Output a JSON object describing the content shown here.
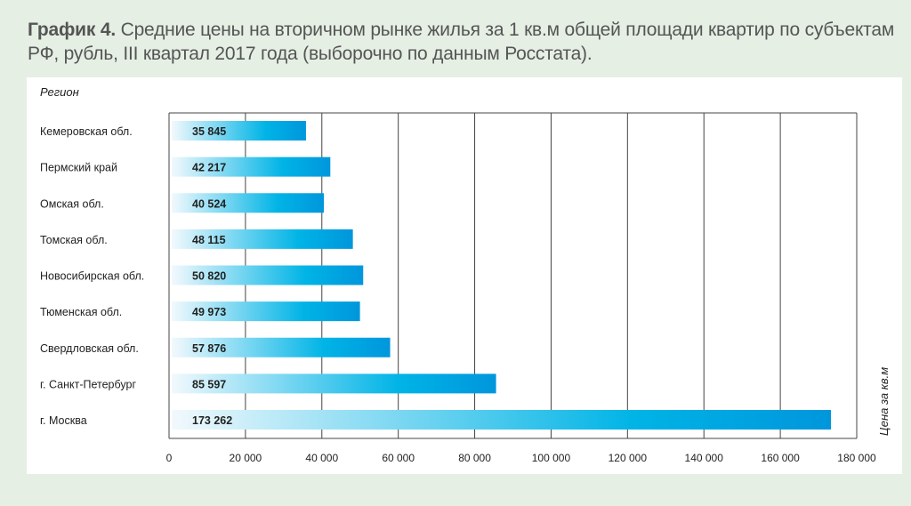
{
  "title": {
    "prefix": "График 4.",
    "text": " Средние цены на вторичном рынке жилья за 1 кв.м общей площади квартир по субъектам РФ, рубль, III квартал 2017 года (выборочно по данным Росстата)."
  },
  "chart_data": {
    "type": "bar",
    "orientation": "horizontal",
    "ylabel": "Регион",
    "xlabel": "Цена за кв.м",
    "xlim": [
      0,
      180000
    ],
    "xticks": [
      "0",
      "20 000",
      "40 000",
      "60 000",
      "80 000",
      "100 000",
      "120 000",
      "140 000",
      "160 000",
      "180 000"
    ],
    "grid": "vertical",
    "categories": [
      "Кемеровская обл.",
      "Пермский край",
      "Омская обл.",
      "Томская обл.",
      "Новосибирская обл.",
      "Тюменская обл.",
      "Свердловская обл.",
      "г. Санкт-Петербург",
      "г. Москва"
    ],
    "values": [
      35845,
      42217,
      40524,
      48115,
      50820,
      49973,
      57876,
      85597,
      173262
    ],
    "data_labels": [
      "35 845",
      "42 217",
      "40 524",
      "48 115",
      "50 820",
      "49 973",
      "57 876",
      "85 597",
      "173 262"
    ],
    "colors": {
      "bar_start": "#f2f9fd",
      "bar_mid": "#00b4e6",
      "bar_end": "#0096dc",
      "grid": "#444444"
    }
  }
}
